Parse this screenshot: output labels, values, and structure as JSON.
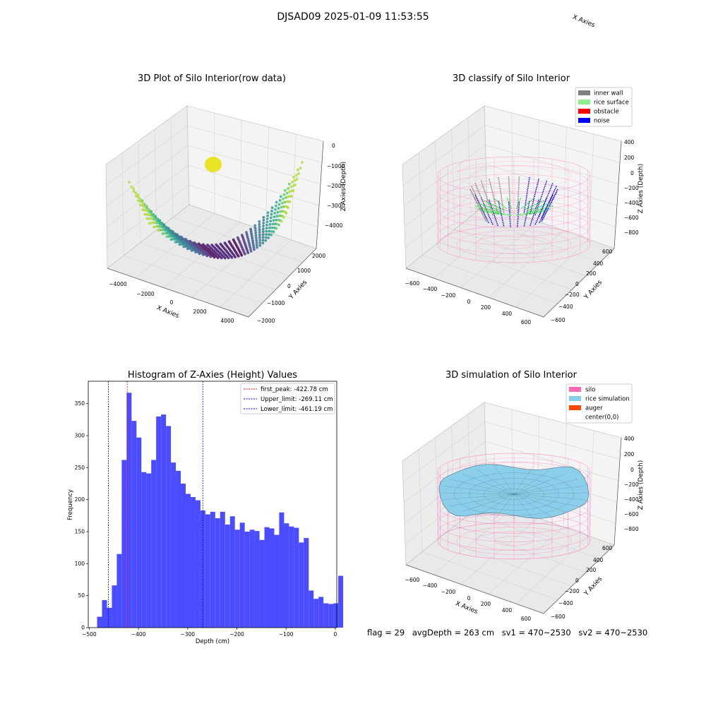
{
  "suptitle": "DJSAD09 2025-01-09 11:53:55",
  "panels": {
    "raw": {
      "title": "3D Plot of Silo Interior(row data)",
      "xlabel": "X Axies",
      "ylabel": "Y Axies",
      "zlabel": "Z Axies (Depth)",
      "xticks": [
        "−4000",
        "−2000",
        "0",
        "2000",
        "4000"
      ],
      "yticks": [
        "−2000",
        "−1000",
        "0",
        "1000",
        "2000"
      ],
      "zticks": [
        "0",
        "−1000",
        "−2000",
        "−3000",
        "−4000"
      ]
    },
    "classify": {
      "title": "3D classify of Silo Interior",
      "xlabel": "X Axies",
      "ylabel": "Y Axies",
      "zlabel": "Z Axies (Depth)",
      "xticks": [
        "−600",
        "−400",
        "−200",
        "0",
        "200",
        "400",
        "600"
      ],
      "yticks": [
        "−600",
        "−400",
        "−200",
        "0",
        "200",
        "400",
        "600"
      ],
      "zticks": [
        "400",
        "200",
        "0",
        "−200",
        "−400",
        "−600",
        "−800"
      ],
      "legend": [
        {
          "label": "inner wall",
          "color": "#808080"
        },
        {
          "label": "rice surface",
          "color": "#90ee90"
        },
        {
          "label": "obstacle",
          "color": "#ff0000"
        },
        {
          "label": "noise",
          "color": "#0000ff"
        }
      ]
    },
    "simulation": {
      "title": "3D simulation of Silo Interior",
      "xlabel": "X Axies",
      "ylabel": "Y Axies",
      "zlabel": "Z Axies (Depth)",
      "xticks": [
        "−600",
        "−400",
        "−200",
        "0",
        "200",
        "400",
        "600"
      ],
      "yticks": [
        "−600",
        "−400",
        "−200",
        "0",
        "200",
        "400",
        "600"
      ],
      "zticks": [
        "400",
        "200",
        "0",
        "−200",
        "−400",
        "−600",
        "−800"
      ],
      "legend": [
        {
          "label": "silo",
          "color": "#ff69b4"
        },
        {
          "label": "rice simulation",
          "color": "#87ceeb"
        },
        {
          "label": "auger",
          "color": "#ff4500"
        },
        {
          "label": "center(0,0)",
          "color": ""
        }
      ]
    }
  },
  "chart_data": {
    "type": "bar",
    "title": "Histogram of Z-Axies (Height) Values",
    "xlabel": "Depth (cm)",
    "ylabel": "Frequency",
    "xlim": [
      -502,
      3
    ],
    "ylim": [
      0,
      385
    ],
    "bin_start": -484,
    "bin_width": 10,
    "values": [
      17,
      43,
      31,
      66,
      115,
      262,
      367,
      323,
      297,
      243,
      241,
      262,
      330,
      333,
      315,
      258,
      245,
      225,
      209,
      204,
      199,
      183,
      177,
      181,
      171,
      181,
      161,
      174,
      153,
      164,
      150,
      153,
      151,
      137,
      157,
      155,
      145,
      180,
      163,
      158,
      156,
      133,
      140,
      58,
      45,
      48,
      38,
      37,
      38,
      81
    ],
    "bar_color": "#4b4bff",
    "xticks": [
      -500,
      -400,
      -300,
      -200,
      -100,
      0
    ],
    "yticks": [
      0,
      50,
      100,
      150,
      200,
      250,
      300,
      350
    ],
    "lines": [
      {
        "label": "first_peak: -422.78 cm",
        "x": -422.78,
        "color": "#ff0000"
      },
      {
        "label": "Upper_limit: -269.11 cm",
        "x": -269.11,
        "color": "#0000ff"
      },
      {
        "label": "Lower_limit: -461.19 cm",
        "x": -461.19,
        "color": "#0000ff"
      }
    ],
    "legend_position": "upper right"
  },
  "footer": {
    "flag": "flag = 29",
    "avg": "avgDepth = 263 cm",
    "sv1": "sv1 = 470~2530",
    "sv2": "sv2 = 470~2530"
  }
}
